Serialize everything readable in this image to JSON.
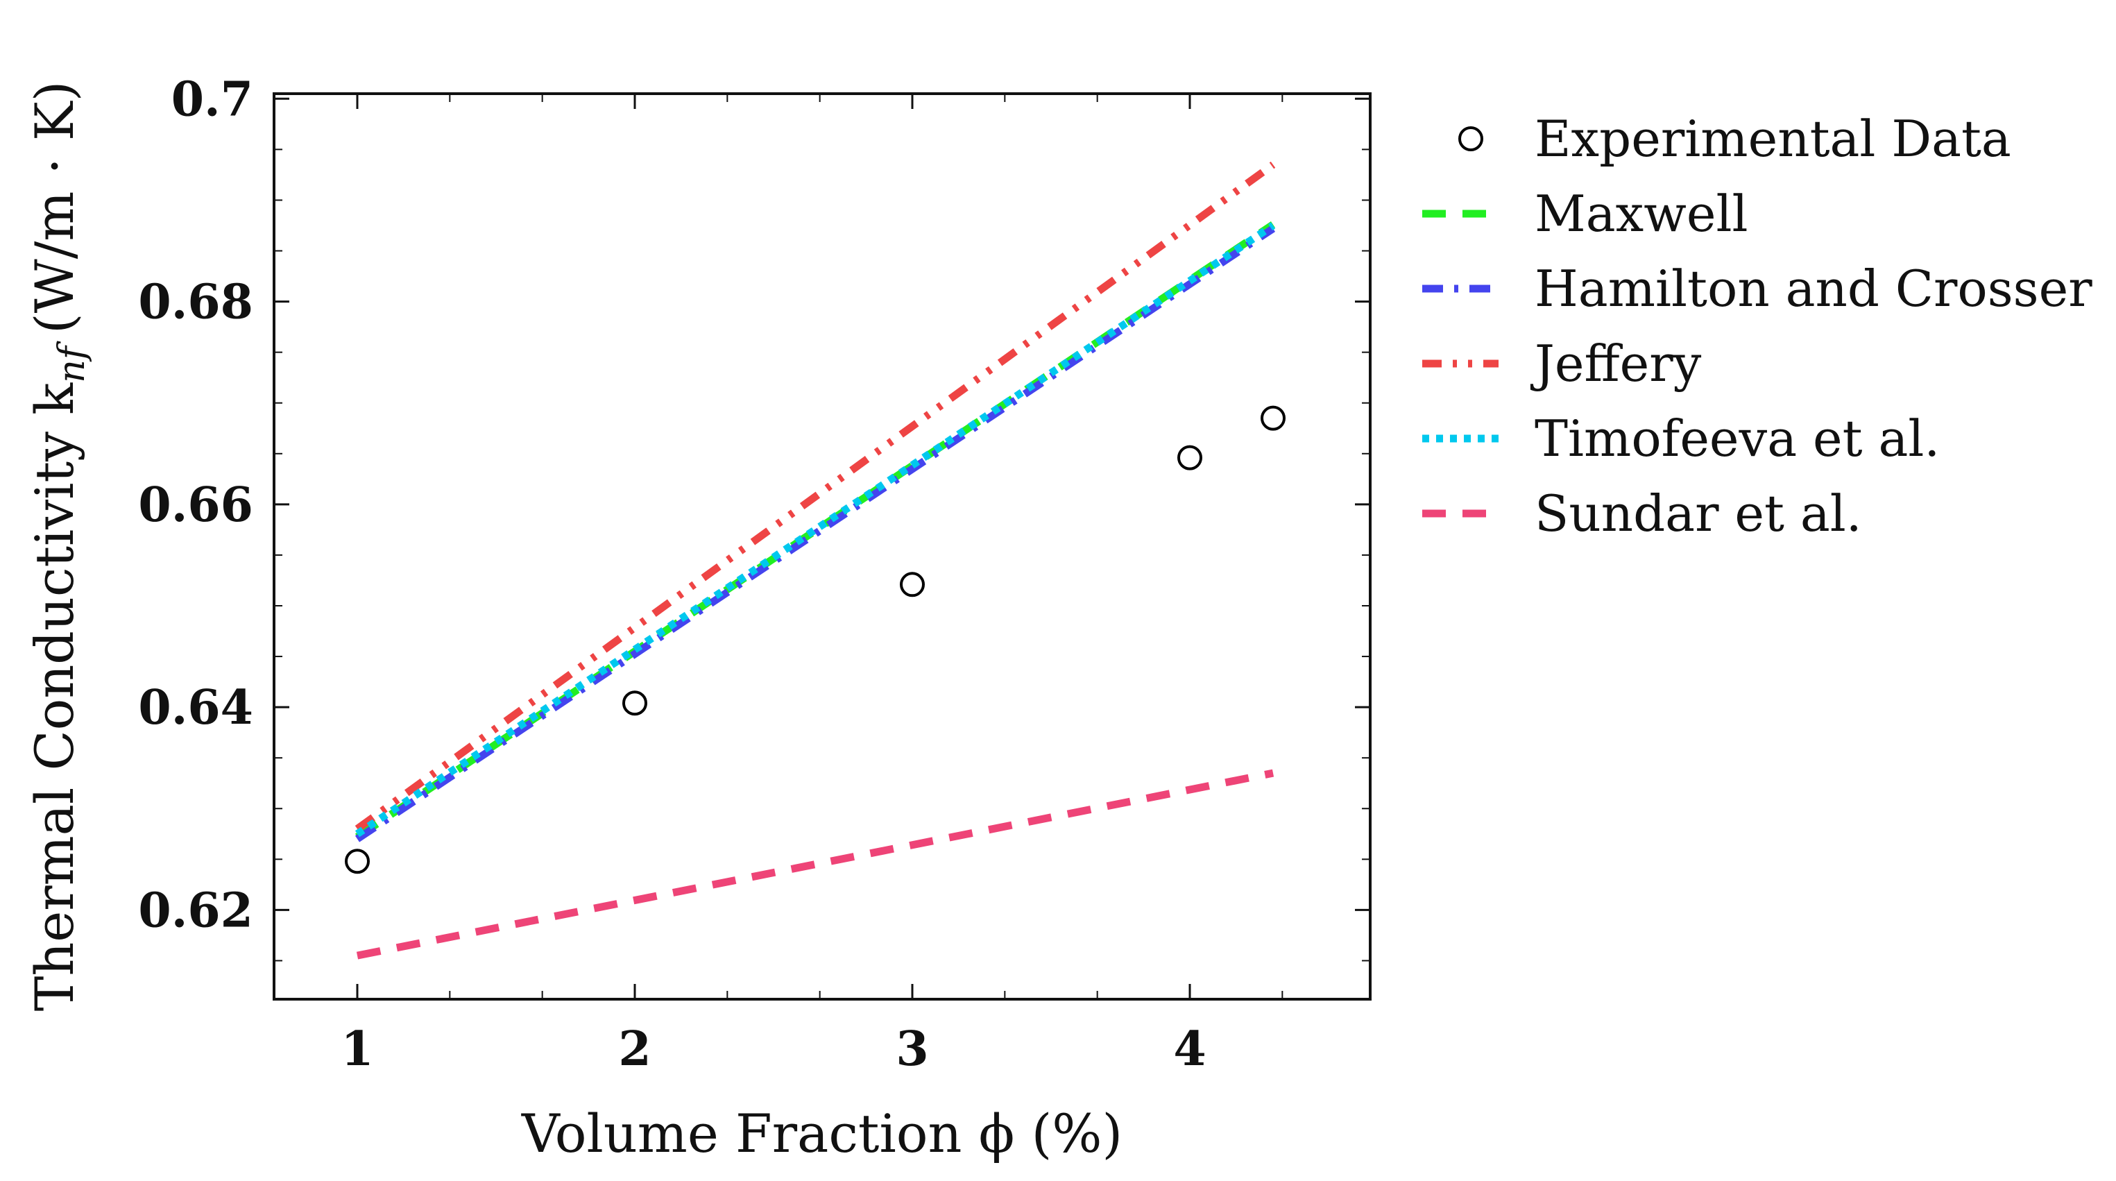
{
  "chart_data": {
    "type": "line",
    "xlabel": "Volume Fraction ϕ (%)",
    "ylabel": "Thermal Conductivity k",
    "ylabel_subscript": "nf",
    "ylabel_unit": "(W/m · K)",
    "xlim": [
      0.7,
      4.65
    ],
    "ylim": [
      0.6112,
      0.7005
    ],
    "xticks": [
      1,
      2,
      3,
      4
    ],
    "yticks": [
      0.62,
      0.64,
      0.66,
      0.68,
      0.7
    ],
    "ytick_labels": [
      "0.62",
      "0.64",
      "0.66",
      "0.68",
      "0.7"
    ],
    "xtick_labels": [
      "1",
      "2",
      "3",
      "4"
    ],
    "grid": false,
    "legend_position": "outside-right",
    "series": [
      {
        "name": "Experimental Data",
        "kind": "scatter",
        "marker": "open-circle",
        "color": "#000000",
        "x": [
          1.0,
          2.0,
          3.0,
          4.0,
          4.3
        ],
        "y": [
          0.6248,
          0.6404,
          0.6521,
          0.6646,
          0.6685
        ]
      },
      {
        "name": "Maxwell",
        "kind": "line",
        "style": "dashed",
        "color": "#22ee22",
        "x": [
          1.0,
          4.3
        ],
        "y": [
          0.6272,
          0.6876
        ]
      },
      {
        "name": "Hamilton and Crosser",
        "kind": "line",
        "style": "dashdot",
        "color": "#4444ee",
        "x": [
          1.0,
          4.3
        ],
        "y": [
          0.627,
          0.6872
        ]
      },
      {
        "name": "Jeffery",
        "kind": "line",
        "style": "dashdotdot",
        "color": "#ee4444",
        "x": [
          1.0,
          4.3
        ],
        "y": [
          0.628,
          0.6935
        ]
      },
      {
        "name": "Timofeeva et al.",
        "kind": "line",
        "style": "dotted",
        "color": "#00c8ee",
        "x": [
          1.0,
          4.3
        ],
        "y": [
          0.6275,
          0.6875
        ]
      },
      {
        "name": "Sundar et al.",
        "kind": "line",
        "style": "dashed",
        "color": "#ee4477",
        "x": [
          1.0,
          4.3
        ],
        "y": [
          0.6155,
          0.6335
        ]
      }
    ]
  }
}
